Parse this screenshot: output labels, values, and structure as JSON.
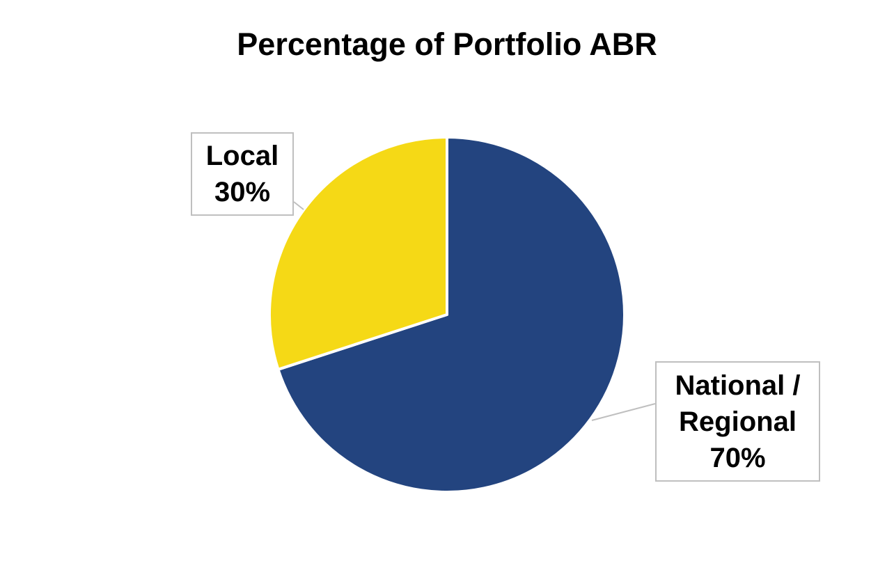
{
  "chart_data": {
    "type": "pie",
    "title": "Percentage of Portfolio ABR",
    "categories": [
      "National / Regional",
      "Local"
    ],
    "values": [
      70,
      30
    ],
    "value_labels": [
      "70%",
      "30%"
    ],
    "colors": [
      "#23447f",
      "#f5d916"
    ]
  }
}
